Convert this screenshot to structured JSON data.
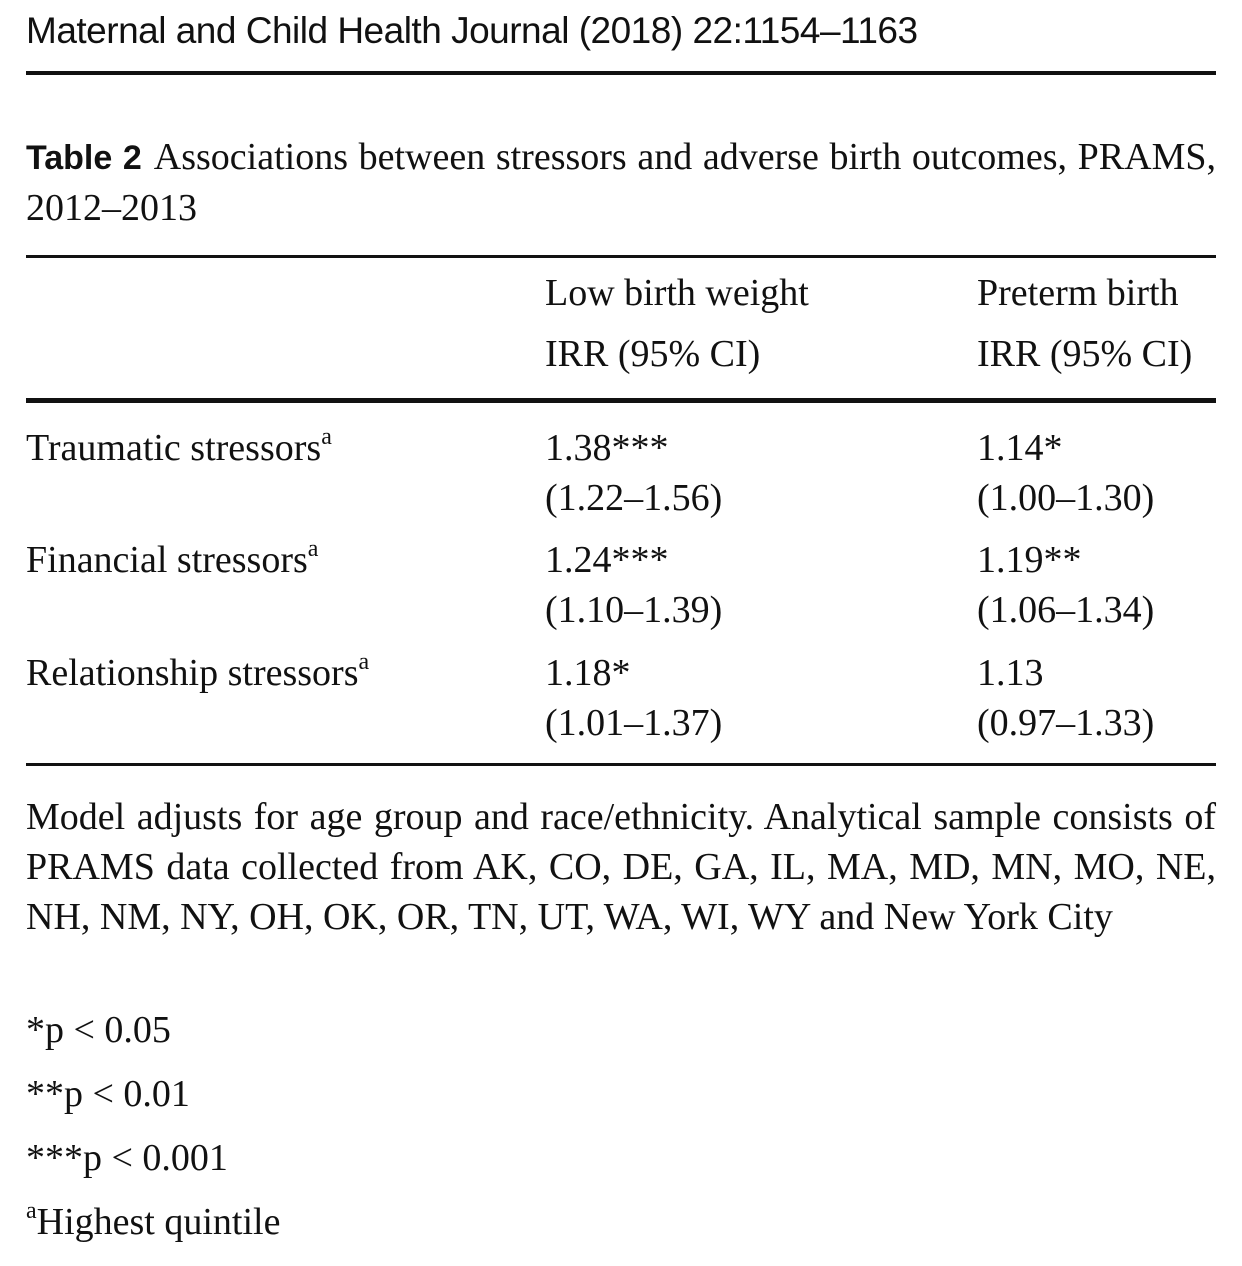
{
  "journal_header": "Maternal and Child Health Journal (2018) 22:1154–1163",
  "caption": {
    "label": "Table 2",
    "text": "Associations between stressors and adverse birth outcomes, PRAMS, 2012–2013"
  },
  "table": {
    "columns": [
      {
        "title": "Low birth weight",
        "subtitle": "IRR (95% CI)"
      },
      {
        "title": "Preterm birth",
        "subtitle": "IRR (95% CI)"
      }
    ],
    "rows": [
      {
        "label": "Traumatic stressors",
        "sup": "a",
        "cells": [
          {
            "estimate": "1.38***",
            "ci": "(1.22–1.56)"
          },
          {
            "estimate": "1.14*",
            "ci": "(1.00–1.30)"
          }
        ]
      },
      {
        "label": "Financial stressors",
        "sup": "a",
        "cells": [
          {
            "estimate": "1.24***",
            "ci": "(1.10–1.39)"
          },
          {
            "estimate": "1.19**",
            "ci": "(1.06–1.34)"
          }
        ]
      },
      {
        "label": "Relationship stressors",
        "sup": "a",
        "cells": [
          {
            "estimate": "1.18*",
            "ci": "(1.01–1.37)"
          },
          {
            "estimate": "1.13",
            "ci": "(0.97–1.33)"
          }
        ]
      }
    ]
  },
  "note": "Model adjusts for age group and race/ethnicity. Analytical sample consists of PRAMS data collected from AK, CO, DE, GA, IL, MA, MD, MN, MO, NE, NH, NM, NY, OH, OK, OR, TN, UT, WA, WI, WY and New York City",
  "footnotes": {
    "p05": "*p < 0.05",
    "p01": "**p < 0.01",
    "p001": "***p < 0.001",
    "a_marker": "a",
    "a_text": "Highest quintile"
  }
}
